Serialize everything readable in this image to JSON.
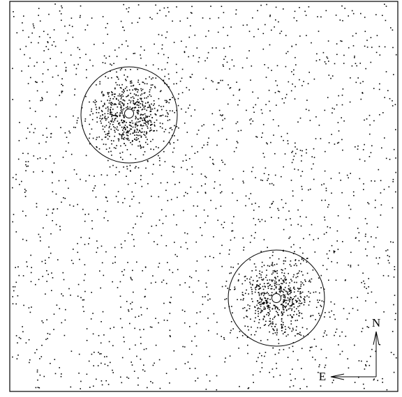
{
  "image": {
    "style": {
      "ink": "#000000",
      "background": "#ffffff"
    }
  },
  "sources": [
    {
      "id": "source-upper-left"
    },
    {
      "id": "source-lower-right"
    }
  ],
  "compass": {
    "north_label": "N",
    "east_label": "E"
  }
}
